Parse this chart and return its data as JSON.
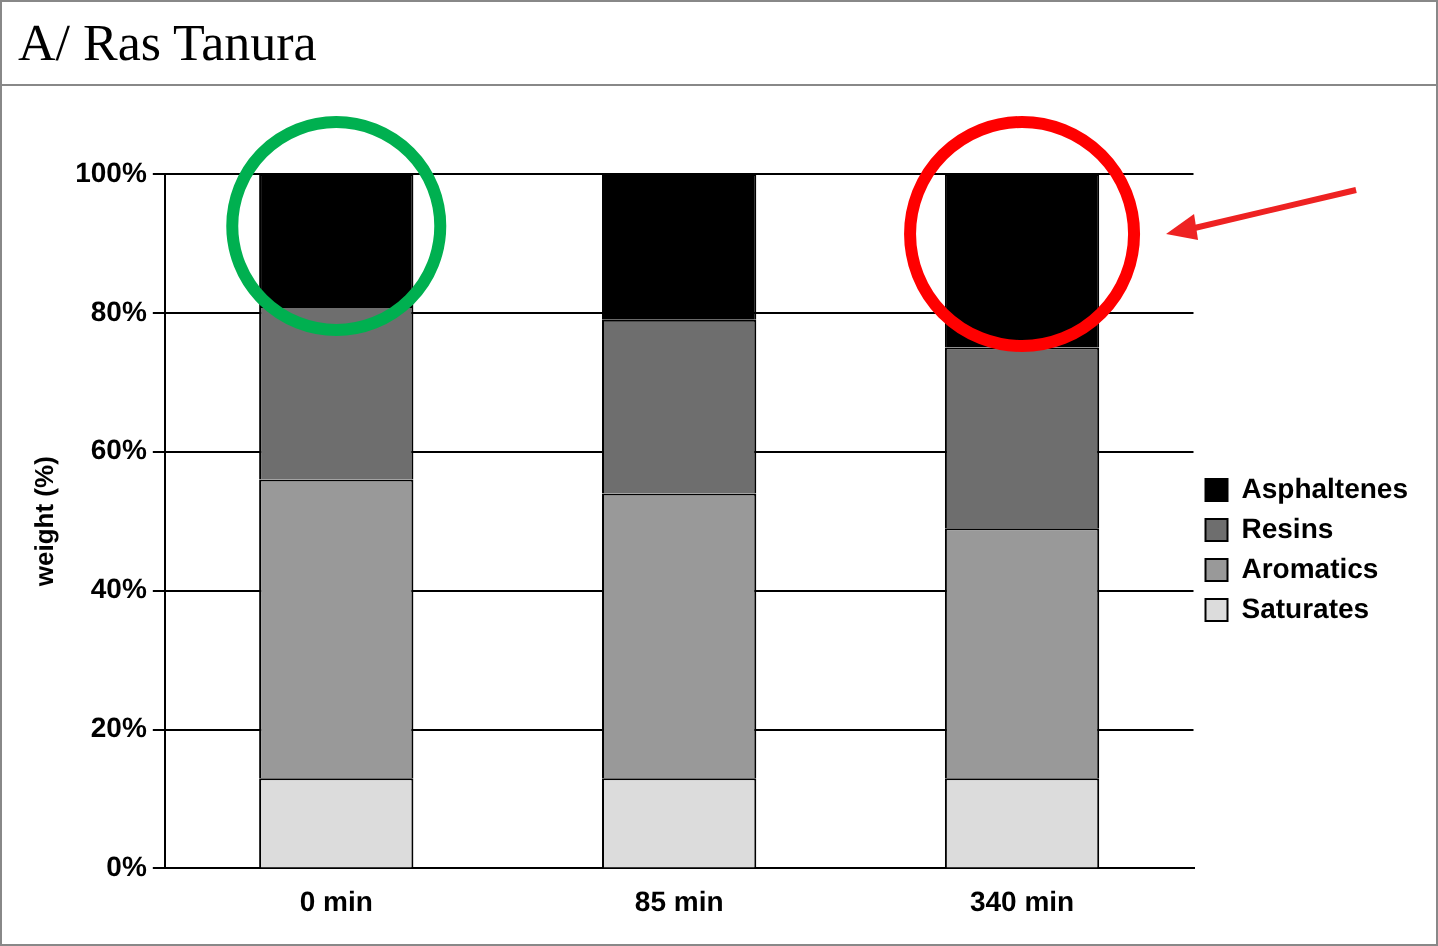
{
  "chart_data": {
    "type": "bar",
    "title": "A/ Ras Tanura",
    "ylabel": "weight (%)",
    "categories": [
      "0 min",
      "85 min",
      "340 min"
    ],
    "stacked": true,
    "series": [
      {
        "name": "Saturates",
        "color": "#dcdcdc",
        "values": [
          13,
          13,
          13
        ]
      },
      {
        "name": "Aromatics",
        "color": "#999999",
        "values": [
          43,
          41,
          36
        ]
      },
      {
        "name": "Resins",
        "color": "#6e6e6e",
        "values": [
          25,
          25,
          26
        ]
      },
      {
        "name": "Asphaltenes",
        "color": "#000000",
        "values": [
          19,
          21,
          25
        ]
      }
    ],
    "ylim": [
      0,
      100
    ],
    "yticks": [
      {
        "value": 0,
        "label": "0%"
      },
      {
        "value": 20,
        "label": "20%"
      },
      {
        "value": 40,
        "label": "40%"
      },
      {
        "value": 60,
        "label": "60%"
      },
      {
        "value": 80,
        "label": "80%"
      },
      {
        "value": 100,
        "label": "100%"
      }
    ],
    "grid": "y",
    "legend": "right"
  }
}
